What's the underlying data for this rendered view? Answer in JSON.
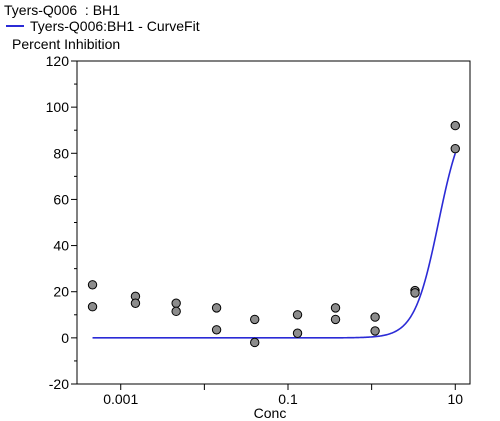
{
  "chart_data": {
    "type": "scatter",
    "title": "Tyers-Q006  : BH1",
    "legend": [
      {
        "label": "Tyers-Q006:BH1 - CurveFit",
        "color": "#2b2bd6",
        "marker": "line"
      }
    ],
    "xlabel": "Conc",
    "ylabel": "Percent Inhibition",
    "x_scale": "log",
    "xlim": [
      0.0003,
      15
    ],
    "ylim": [
      -20,
      120
    ],
    "y_ticks": [
      -20,
      0,
      20,
      40,
      60,
      80,
      100,
      120
    ],
    "x_ticks": [
      0.001,
      0.1,
      10
    ],
    "x_tick_labels": [
      "0.001",
      "0.1",
      "10"
    ],
    "grid": false,
    "legend_position": "top-left",
    "series": [
      {
        "type": "scatter",
        "color": "#8c8c8c",
        "points": [
          [
            0.00046,
            23
          ],
          [
            0.00046,
            13.5
          ],
          [
            0.0015,
            18
          ],
          [
            0.0015,
            15
          ],
          [
            0.0046,
            15
          ],
          [
            0.0046,
            11.5
          ],
          [
            0.014,
            13
          ],
          [
            0.014,
            3.5
          ],
          [
            0.04,
            8
          ],
          [
            0.04,
            -2
          ],
          [
            0.13,
            10
          ],
          [
            0.13,
            2
          ],
          [
            0.37,
            13
          ],
          [
            0.37,
            8
          ],
          [
            1.1,
            9
          ],
          [
            1.1,
            3
          ],
          [
            3.3,
            20.5
          ],
          [
            3.3,
            19.5
          ],
          [
            10,
            92
          ],
          [
            10,
            82
          ]
        ]
      },
      {
        "name": "Tyers-Q006:BH1 - CurveFit",
        "type": "line",
        "color": "#2b2bd6",
        "model": {
          "bottom": 0,
          "top": 100,
          "ec50": 6.3,
          "hill": 3.0
        },
        "x_range": [
          0.00046,
          10
        ]
      }
    ]
  }
}
